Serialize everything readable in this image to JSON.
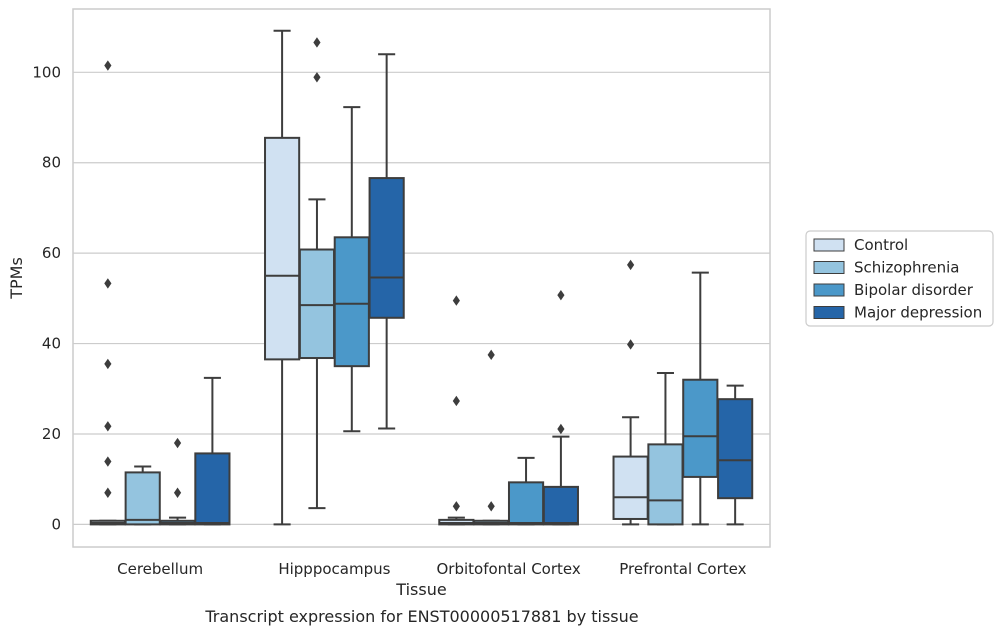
{
  "chart_data": {
    "type": "box",
    "title": "",
    "caption": "Transcript expression for ENST00000517881 by tissue",
    "xlabel": "Tissue",
    "ylabel": "TPMs",
    "ylim": [
      -5,
      114
    ],
    "yticks": [
      0,
      20,
      40,
      60,
      80,
      100
    ],
    "grid": "horizontal",
    "legend_position": "right",
    "categories": [
      "Cerebellum",
      "Hipppocampus",
      "Orbitofontal Cortex",
      "Prefrontal Cortex"
    ],
    "series": [
      {
        "name": "Control",
        "color": "#d0e1f2",
        "boxes": [
          {
            "whislo": 0,
            "q1": 0,
            "med": 0.3,
            "q3": 0.8,
            "whishi": 0.8,
            "fliers": [
              101.5,
              53.3,
              35.5,
              21.7,
              13.9,
              7.0
            ]
          },
          {
            "whislo": 0,
            "q1": 36.5,
            "med": 55,
            "q3": 85.5,
            "whishi": 109.2,
            "fliers": []
          },
          {
            "whislo": 0,
            "q1": 0,
            "med": 0.3,
            "q3": 1.0,
            "whishi": 1.5,
            "fliers": [
              49.5,
              27.3,
              4.0
            ]
          },
          {
            "whislo": 0,
            "q1": 1.2,
            "med": 6.0,
            "q3": 15.0,
            "whishi": 23.7,
            "fliers": [
              57.4,
              39.8
            ]
          }
        ]
      },
      {
        "name": "Schizophrenia",
        "color": "#94c4df",
        "boxes": [
          {
            "whislo": 0,
            "q1": 0,
            "med": 1.0,
            "q3": 11.5,
            "whishi": 12.8,
            "fliers": []
          },
          {
            "whislo": 3.6,
            "q1": 36.8,
            "med": 48.5,
            "q3": 60.8,
            "whishi": 71.9,
            "fliers": [
              106.6,
              98.9
            ]
          },
          {
            "whislo": 0,
            "q1": 0,
            "med": 0.3,
            "q3": 0.8,
            "whishi": 0.8,
            "fliers": [
              37.5,
              4.0
            ]
          },
          {
            "whislo": 0,
            "q1": 0,
            "med": 5.3,
            "q3": 17.7,
            "whishi": 33.5,
            "fliers": []
          }
        ]
      },
      {
        "name": "Bipolar disorder",
        "color": "#4b98c9",
        "boxes": [
          {
            "whislo": 0,
            "q1": 0,
            "med": 0.3,
            "q3": 0.8,
            "whishi": 1.5,
            "fliers": [
              18.0,
              7.0
            ]
          },
          {
            "whislo": 20.6,
            "q1": 35.0,
            "med": 48.8,
            "q3": 63.5,
            "whishi": 92.3,
            "fliers": []
          },
          {
            "whislo": 0,
            "q1": 0,
            "med": 0.3,
            "q3": 9.3,
            "whishi": 14.7,
            "fliers": []
          },
          {
            "whislo": 0,
            "q1": 10.5,
            "med": 19.5,
            "q3": 32.0,
            "whishi": 55.7,
            "fliers": []
          }
        ]
      },
      {
        "name": "Major depression",
        "color": "#2565a8",
        "boxes": [
          {
            "whislo": 0,
            "q1": 0,
            "med": 0.3,
            "q3": 15.7,
            "whishi": 32.4,
            "fliers": []
          },
          {
            "whislo": 21.2,
            "q1": 45.7,
            "med": 54.6,
            "q3": 76.6,
            "whishi": 104.0,
            "fliers": []
          },
          {
            "whislo": 0,
            "q1": 0,
            "med": 0.3,
            "q3": 8.3,
            "whishi": 19.4,
            "fliers": [
              50.7,
              21.1
            ]
          },
          {
            "whislo": 0,
            "q1": 5.8,
            "med": 14.2,
            "q3": 27.7,
            "whishi": 30.7,
            "fliers": []
          }
        ]
      }
    ]
  }
}
